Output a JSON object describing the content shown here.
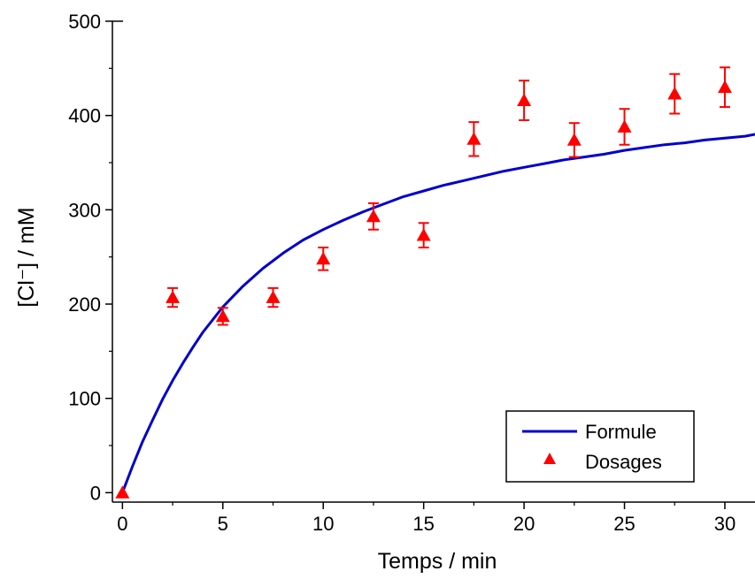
{
  "chart_data": {
    "type": "scatter",
    "xlabel": "Temps / min",
    "ylabel": "[Cl⁻] / mM",
    "xlim": [
      -0.5,
      31.5
    ],
    "ylim": [
      -10,
      500
    ],
    "xticks": [
      0,
      5,
      10,
      15,
      20,
      25,
      30
    ],
    "xtick_labels": [
      "0",
      "5",
      "10",
      "15",
      "20",
      "25",
      "30"
    ],
    "yticks": [
      0,
      100,
      200,
      300,
      400,
      500
    ],
    "ytick_labels": [
      "0",
      "100",
      "200",
      "300",
      "400",
      "500"
    ],
    "grid": false,
    "legend_position": "bottom-right",
    "series": [
      {
        "name": "Formule",
        "kind": "line",
        "color": "#0000cc",
        "x": [
          0,
          0.5,
          1,
          1.5,
          2,
          2.5,
          3,
          3.5,
          4,
          5,
          6,
          7,
          8,
          9,
          10,
          11,
          12,
          13,
          14,
          15,
          16,
          17,
          18,
          19,
          20,
          21,
          22,
          23,
          24,
          25,
          26,
          27,
          28,
          29,
          30,
          31,
          31.5
        ],
        "values": [
          0,
          28,
          54,
          77,
          99,
          119,
          137,
          154,
          170,
          197,
          219,
          238,
          254,
          268,
          279,
          289,
          298,
          306,
          314,
          320,
          326,
          331,
          336,
          341,
          345,
          349,
          353,
          356,
          359,
          363,
          366,
          369,
          371,
          374,
          376,
          378,
          380
        ]
      },
      {
        "name": "Dosages",
        "kind": "scatter",
        "marker": "triangle",
        "color": "#ff0000",
        "x": [
          0,
          2.5,
          5,
          7.5,
          10,
          12.5,
          15,
          17.5,
          20,
          22.5,
          25,
          27.5,
          30
        ],
        "values": [
          0,
          207,
          187,
          207,
          248,
          293,
          273,
          375,
          416,
          374,
          388,
          423,
          430
        ],
        "errors": [
          0,
          10,
          9,
          10,
          12,
          14,
          13,
          18,
          21,
          18,
          19,
          21,
          21
        ]
      }
    ]
  }
}
